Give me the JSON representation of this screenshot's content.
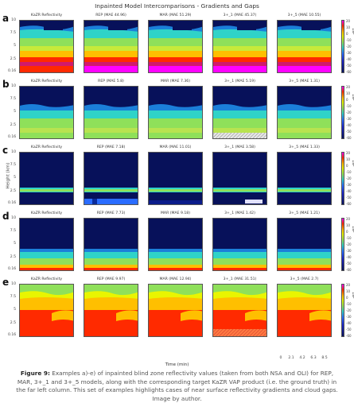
{
  "figure": {
    "title": "Inpainted Model Intercomparisons - Gradients and Gaps",
    "ylabel": "Height (km)",
    "xlabel": "Time (min)",
    "x_ticks": [
      "0",
      "2.1",
      "4.2",
      "6.3",
      "8.5"
    ],
    "y_ticks": [
      "10",
      "7.5",
      "5",
      "2.5",
      "0.16"
    ],
    "colorbar_ticks": [
      "20",
      "10",
      "0",
      "-10",
      "-20",
      "-30",
      "-40",
      "-50",
      "-60"
    ],
    "colorbar_unit": "dBZ",
    "colors": {
      "dark_blue": "#07115a",
      "teal": "#2fd3c8",
      "green": "#8fe05a",
      "yellow": "#e9f500",
      "orange": "#ffbf00",
      "red": "#ff2a00",
      "magenta": "#ff00ff"
    }
  },
  "rows": [
    {
      "label": "a",
      "panels": [
        {
          "title": "KaZR Reflectivity",
          "style": "a"
        },
        {
          "title": "REP (MAE 44.96)",
          "style": "a"
        },
        {
          "title": "MAR (MAE 51.29)",
          "style": "a"
        },
        {
          "title": "3+_1 (MAE 45.37)",
          "style": "a"
        },
        {
          "title": "3+_5 (MAE 10.55)",
          "style": "a"
        }
      ]
    },
    {
      "label": "b",
      "panels": [
        {
          "title": "KaZR Reflectivity",
          "style": "b"
        },
        {
          "title": "REP (MAE 5.8)",
          "style": "b"
        },
        {
          "title": "MAR (MAE 7.36)",
          "style": "b"
        },
        {
          "title": "3+_1 (MAE 5.19)",
          "style": "b"
        },
        {
          "title": "3+_5 (MAE 1.31)",
          "style": "b"
        }
      ]
    },
    {
      "label": "c",
      "panels": [
        {
          "title": "KaZR Reflectivity",
          "style": "c"
        },
        {
          "title": "REP (MAE 7.18)",
          "style": "c"
        },
        {
          "title": "MAR (MAE 11.01)",
          "style": "c"
        },
        {
          "title": "3+_1 (MAE 3.58)",
          "style": "c"
        },
        {
          "title": "3+_5 (MAE 1.33)",
          "style": "c"
        }
      ]
    },
    {
      "label": "d",
      "panels": [
        {
          "title": "KaZR Reflectivity",
          "style": "d"
        },
        {
          "title": "REP (MAE 7.73)",
          "style": "d"
        },
        {
          "title": "MAR (MAE 9.18)",
          "style": "d"
        },
        {
          "title": "3+_1 (MAE 1.42)",
          "style": "d"
        },
        {
          "title": "3+_5 (MAE 1.21)",
          "style": "d"
        }
      ]
    },
    {
      "label": "e",
      "panels": [
        {
          "title": "KaZR Reflectivity",
          "style": "e"
        },
        {
          "title": "REP (MAE 9.97)",
          "style": "e"
        },
        {
          "title": "MAR (MAE 12.94)",
          "style": "e"
        },
        {
          "title": "3+_1 (MAE 31.51)",
          "style": "e"
        },
        {
          "title": "3+_5 (MAE 2.7)",
          "style": "e"
        }
      ]
    }
  ],
  "caption": {
    "label": "Figure 9:",
    "text": " Examples a)-e) of inpainted blind zone reflectivity values (taken from both NSA and OLI) for REP, MAR, 3+_1 and 3+_5 models, along with the corresponding target KaZR VAP product (i.e. the ground truth) in the far left column. This set of examples highlights cases of near surface reflectivity gradients and cloud gaps. Image by author."
  }
}
